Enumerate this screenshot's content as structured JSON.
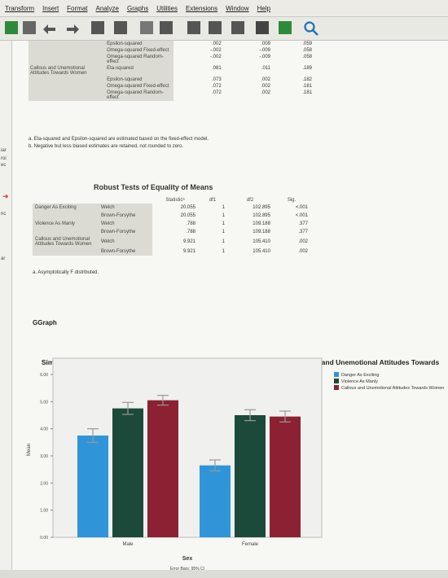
{
  "menu": [
    "Transform",
    "Insert",
    "Format",
    "Analyze",
    "Graphs",
    "Utilities",
    "Extensions",
    "Window",
    "Help"
  ],
  "left_strip": [
    "iar",
    "roi",
    "ec",
    "nc",
    "ar"
  ],
  "effect_table": {
    "rows": [
      {
        "dv": "",
        "measure": "Epsilon-squared",
        "v1": ".002",
        "v2": ".009",
        "v3": ".059"
      },
      {
        "dv": "",
        "measure": "Omega-squared Fixed-effect",
        "v1": "-.002",
        "v2": "-.009",
        "v3": ".058"
      },
      {
        "dv": "",
        "measure": "Omega-squared Random-effect",
        "v1": "-.002",
        "v2": "-.009",
        "v3": ".058"
      },
      {
        "dv": "Callous and Unemotional Attitudes Towards Women",
        "measure": "Eta-squared",
        "v1": ".081",
        "v2": ".011",
        "v3": ".189"
      },
      {
        "dv": "",
        "measure": "Epsilon-squared",
        "v1": ".073",
        "v2": ".002",
        "v3": ".182"
      },
      {
        "dv": "",
        "measure": "Omega-squared Fixed-effect",
        "v1": ".072",
        "v2": ".002",
        "v3": ".181"
      },
      {
        "dv": "",
        "measure": "Omega-squared Random-effect",
        "v1": ".072",
        "v2": ".002",
        "v3": ".181"
      }
    ],
    "note_a": "a. Eta-squared and Epsilon-squared are estimated based on the fixed-effect model.",
    "note_b": "b. Negative but less biased estimates are retained, not rounded to zero."
  },
  "robust_table": {
    "title": "Robust Tests of Equality of Means",
    "headers": [
      "",
      "",
      "Statisticᵃ",
      "df1",
      "df2",
      "Sig."
    ],
    "rows": [
      {
        "dv": "Danger As Exciting",
        "test": "Welch",
        "stat": "20.055",
        "df1": "1",
        "df2": "102.895",
        "sig": "<.001"
      },
      {
        "dv": "",
        "test": "Brown-Forsythe",
        "stat": "20.055",
        "df1": "1",
        "df2": "102.895",
        "sig": "<.001"
      },
      {
        "dv": "Violence As Manly",
        "test": "Welch",
        "stat": ".788",
        "df1": "1",
        "df2": "109.188",
        "sig": ".377"
      },
      {
        "dv": "",
        "test": "Brown-Forsythe",
        "stat": ".788",
        "df1": "1",
        "df2": "109.188",
        "sig": ".377"
      },
      {
        "dv": "Callous and Unemotional Attitudes Towards Women",
        "test": "Welch",
        "stat": "9.921",
        "df1": "1",
        "df2": "105.410",
        "sig": ".002"
      },
      {
        "dv": "",
        "test": "Brown-Forsythe",
        "stat": "9.921",
        "df1": "1",
        "df2": "105.410",
        "sig": ".002"
      }
    ],
    "note": "a. Asymptotically F distributed."
  },
  "ggraph_label": "GGraph",
  "chart_data": {
    "type": "bar",
    "title": "Simple Bar Mean of Danger As Exciting, Mean of Violence As Manly, Mean of Callous and Unemotional Attitudes Towards Women by Sex",
    "xlabel": "Sex",
    "ylabel": "Mean",
    "ylim": [
      0,
      6
    ],
    "yticks": [
      "0.00",
      "1.00",
      "2.00",
      "3.00",
      "4.00",
      "5.00",
      "6.00"
    ],
    "categories": [
      "Male",
      "Female"
    ],
    "series": [
      {
        "name": "Danger As Exciting",
        "color": "#2f95d8",
        "values": [
          3.75,
          2.65
        ],
        "err": [
          0.25,
          0.2
        ]
      },
      {
        "name": "Violence As Manly",
        "color": "#1c4a3a",
        "values": [
          4.75,
          4.5
        ],
        "err": [
          0.22,
          0.2
        ]
      },
      {
        "name": "Callous and Unemotional Attitudes Towards Women",
        "color": "#8b2132",
        "values": [
          5.05,
          4.45
        ],
        "err": [
          0.18,
          0.2
        ]
      }
    ],
    "footnote": "Error Bars: 95% CI"
  }
}
